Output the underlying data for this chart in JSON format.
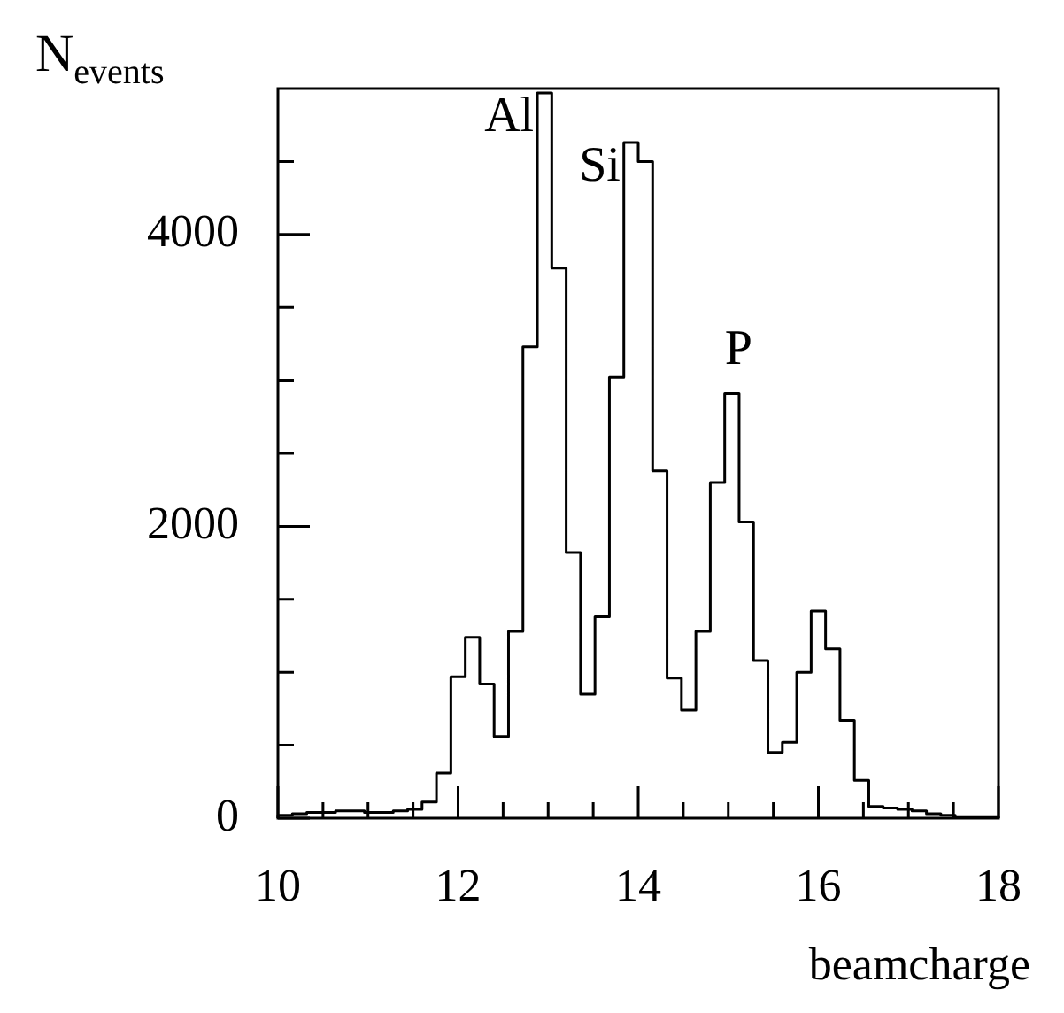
{
  "chart_data": {
    "type": "histogram",
    "xlabel": "beamcharge",
    "ylabel": "N$_{events}$",
    "bins": [
      10,
      10.16,
      10.32,
      10.48,
      10.64,
      10.8,
      10.96,
      11.12,
      11.28,
      11.44,
      11.6,
      11.76,
      11.92,
      12.08,
      12.24,
      12.4,
      12.56,
      12.72,
      12.88,
      13.04,
      13.2,
      13.36,
      13.52,
      13.68,
      13.84,
      14,
      14.16,
      14.32,
      14.48,
      14.64,
      14.8,
      14.96,
      15.12,
      15.28,
      15.44,
      15.6,
      15.76,
      15.92,
      16.08,
      16.24,
      16.4,
      16.56,
      16.72,
      16.88,
      17.04,
      17.2,
      17.36,
      17.52,
      17.68,
      17.84,
      18
    ],
    "values": [
      20,
      30,
      40,
      40,
      50,
      50,
      40,
      40,
      50,
      60,
      110,
      310,
      970,
      1240,
      920,
      560,
      1280,
      3230,
      4970,
      3770,
      1820,
      850,
      1380,
      3020,
      4630,
      4500,
      2380,
      960,
      740,
      1280,
      2300,
      2910,
      2030,
      1080,
      450,
      520,
      1000,
      1420,
      1160,
      670,
      260,
      80,
      70,
      60,
      50,
      30,
      20,
      10,
      10,
      10
    ],
    "color": "#000000",
    "xlim": [
      10,
      18
    ],
    "ylim": [
      0,
      5000
    ],
    "xticks": [
      10,
      {
        "value": 10.5,
        "label": null
      },
      {
        "value": 11,
        "label": null
      },
      {
        "value": 11.5,
        "label": null
      },
      12,
      {
        "value": 12.5,
        "label": null
      },
      {
        "value": 13,
        "label": null
      },
      {
        "value": 13.5,
        "label": null
      },
      14,
      {
        "value": 14.5,
        "label": null
      },
      {
        "value": 15,
        "label": null
      },
      {
        "value": 15.5,
        "label": null
      },
      16,
      {
        "value": 16.5,
        "label": null
      },
      {
        "value": 17,
        "label": null
      },
      {
        "value": 17.5,
        "label": null
      },
      18
    ],
    "yticks": [
      0,
      {
        "value": 500,
        "label": null
      },
      {
        "value": 1000,
        "label": null
      },
      {
        "value": 1500,
        "label": null
      },
      2000,
      {
        "value": 2500,
        "label": null
      },
      {
        "value": 3000,
        "label": null
      },
      {
        "value": 3500,
        "label": null
      },
      4000,
      {
        "value": 4500,
        "label": null
      }
    ],
    "annotations": [
      {
        "text": "Al",
        "x": 12.96,
        "y": 4970
      },
      {
        "text": "Si",
        "x": 13.92,
        "y": 4630
      },
      {
        "text": "P",
        "x": 15.04,
        "y": 2910
      }
    ],
    "grid": false,
    "legend": false
  }
}
